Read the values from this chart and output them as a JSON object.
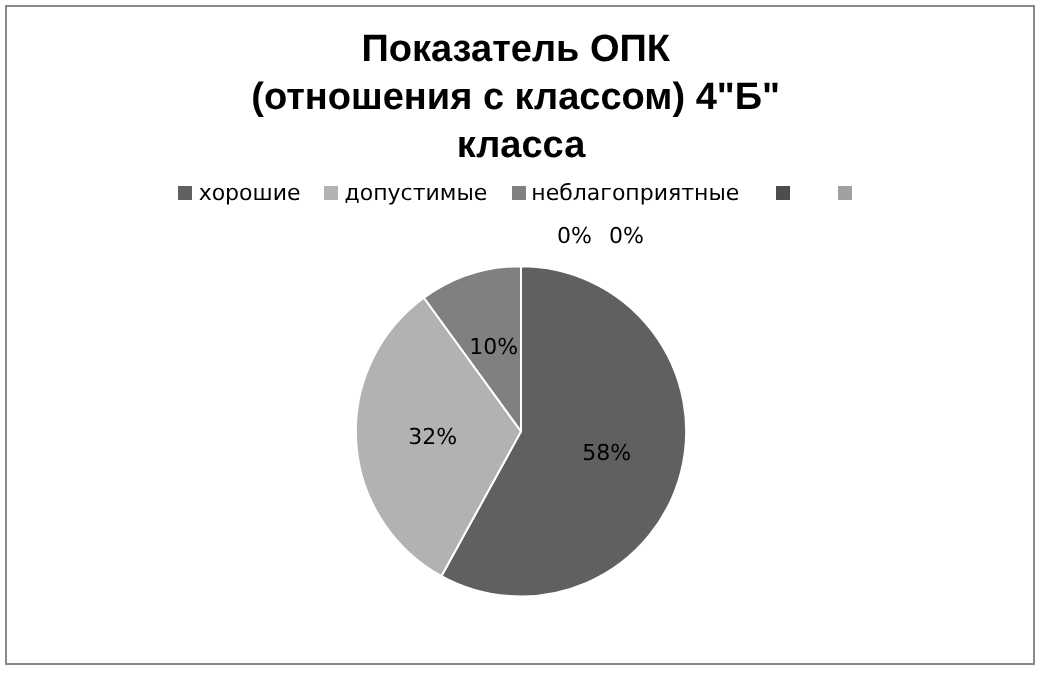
{
  "chart_data": {
    "type": "pie",
    "title": "Показатель ОПК (отношения с классом) 4\"Б\" класса",
    "categories": [
      "хорошие",
      "допустимые",
      "неблагоприятные",
      null,
      null
    ],
    "values": [
      58,
      32,
      10,
      0,
      0
    ],
    "value_labels": [
      "58%",
      "32%",
      "10%",
      "0%",
      "0%"
    ],
    "colors": [
      "#606060",
      "#b2b2b2",
      "#808080",
      "#4d4d4d",
      "#a0a0a0"
    ],
    "legend": "top"
  }
}
